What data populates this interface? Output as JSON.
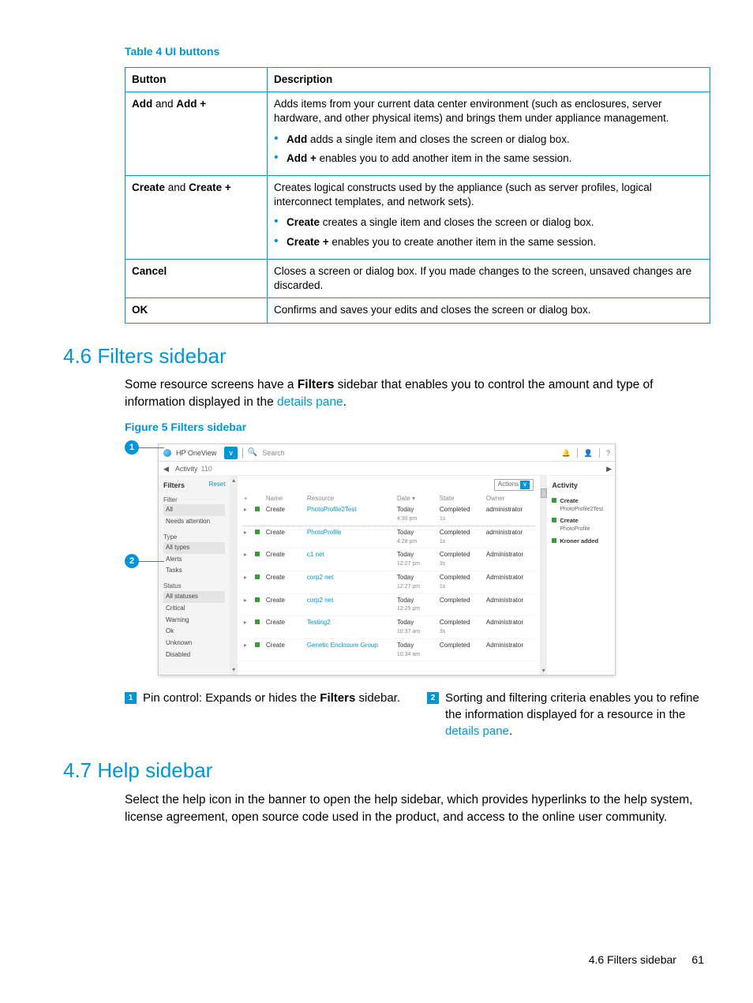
{
  "table": {
    "caption": "Table 4 UI buttons",
    "headers": {
      "button": "Button",
      "description": "Description"
    },
    "rows": [
      {
        "button_html": "<span class=\"bold\">Add</span> and <span class=\"bold\">Add +</span>",
        "desc_intro": "Adds items from your current data center environment (such as enclosures, server hardware, and other physical items) and brings them under appliance management.",
        "bullets": [
          "<span class=\"bold\">Add</span> adds a single item and closes the screen or dialog box.",
          "<span class=\"bold\">Add +</span> enables you to add another item in the same session."
        ]
      },
      {
        "button_html": "<span class=\"bold\">Create</span> and <span class=\"bold\">Create +</span>",
        "desc_intro": "Creates logical constructs used by the appliance (such as server profiles, logical interconnect templates, and network sets).",
        "bullets": [
          "<span class=\"bold\">Create</span> creates a single item and closes the screen or dialog box.",
          "<span class=\"bold\">Create +</span> enables you to create another item in the same session."
        ]
      },
      {
        "button_html": "<span class=\"bold\">Cancel</span>",
        "desc_intro": "Closes a screen or dialog box. If you made changes to the screen, unsaved changes are discarded.",
        "bullets": []
      },
      {
        "button_html": "<span class=\"bold\">OK</span>",
        "desc_intro": "Confirms and saves your edits and closes the screen or dialog box.",
        "bullets": []
      }
    ]
  },
  "section46": {
    "heading": "4.6 Filters sidebar",
    "para_html": "Some resource screens have a <span class=\"bold\">Filters</span> sidebar that enables you to control the amount and type of information displayed in the <a class=\"link\" href=\"#\" data-name=\"details-pane-link\" data-interactable=\"true\">details pane</a>.",
    "figure_caption": "Figure 5 Filters sidebar"
  },
  "screenshot": {
    "brand": "HP OneView",
    "chevron": "∨",
    "search_placeholder": "Search",
    "bell": "🔔",
    "session": "·•·",
    "help": "?",
    "sub_pin": "◀",
    "sub_label": "Activity",
    "sub_count": "110",
    "sub_pin_r": "▶",
    "filters": {
      "title": "Filters",
      "reset": "Reset",
      "groups": [
        {
          "label": "Filter",
          "items": [
            {
              "t": "All",
              "sel": true
            },
            {
              "t": "Needs attention"
            }
          ]
        },
        {
          "label": "Type",
          "items": [
            {
              "t": "All types",
              "sel": true
            },
            {
              "t": "Alerts"
            },
            {
              "t": "Tasks"
            }
          ]
        },
        {
          "label": "Status",
          "items": [
            {
              "t": "All statuses",
              "sel": true
            },
            {
              "t": "Critical"
            },
            {
              "t": "Warning"
            },
            {
              "t": "Ok"
            },
            {
              "t": "Unknown"
            },
            {
              "t": "Disabled"
            }
          ]
        }
      ]
    },
    "actions_label": "Actions",
    "columns": {
      "name": "Name",
      "resource": "Resource",
      "date": "Date",
      "state": "State",
      "owner": "Owner"
    },
    "rows": [
      {
        "name": "Create",
        "res": "PhotoProfile2Test",
        "d1": "Today",
        "d2": "4:30 pm",
        "state": "Completed",
        "s2": "1s",
        "owner": "administrator"
      },
      {
        "name": "Create",
        "res": "PhotoProfile",
        "d1": "Today",
        "d2": "4:28 pm",
        "state": "Completed",
        "s2": "1s",
        "owner": "administrator"
      },
      {
        "name": "Create",
        "res": "c1 net",
        "d1": "Today",
        "d2": "12:27 pm",
        "state": "Completed",
        "s2": "3s",
        "owner": "Administrator"
      },
      {
        "name": "Create",
        "res": "corp2 net",
        "d1": "Today",
        "d2": "12:27 pm",
        "state": "Completed",
        "s2": "1s",
        "owner": "Administrator"
      },
      {
        "name": "Create",
        "res": "corp2 net",
        "d1": "Today",
        "d2": "12:25 pm",
        "state": "Completed",
        "s2": "",
        "owner": "Administrator"
      },
      {
        "name": "Create",
        "res": "Testing2",
        "d1": "Today",
        "d2": "10:37 am",
        "state": "Completed",
        "s2": "3s",
        "owner": "Administrator"
      },
      {
        "name": "Create",
        "res": "Genetic Enclosure Group",
        "d1": "Today",
        "d2": "10:34 am",
        "state": "Completed",
        "s2": "",
        "owner": "Administrator"
      }
    ],
    "right": {
      "title": "Activity",
      "items": [
        {
          "b": "Create",
          "s": "PhotoProfile2Test"
        },
        {
          "b": "Create",
          "s": "PhotoProfile"
        },
        {
          "b": "Kroner added",
          "s": ""
        }
      ]
    }
  },
  "legend": {
    "c1_html": "Pin control: Expands or hides the <span class=\"bold\">Filters</span> sidebar.",
    "c2_html": "Sorting and filtering criteria enables you to refine the information displayed for a resource in the <a class=\"link\" href=\"#\" data-name=\"details-pane-link-2\" data-interactable=\"true\">details pane</a>."
  },
  "section47": {
    "heading": "4.7 Help sidebar",
    "para": "Select the help icon in the banner to open the help sidebar, which provides hyperlinks to the help system, license agreement, open source code used in the product, and access to the online user community."
  },
  "footer": {
    "label": "4.6 Filters sidebar",
    "page": "61"
  }
}
